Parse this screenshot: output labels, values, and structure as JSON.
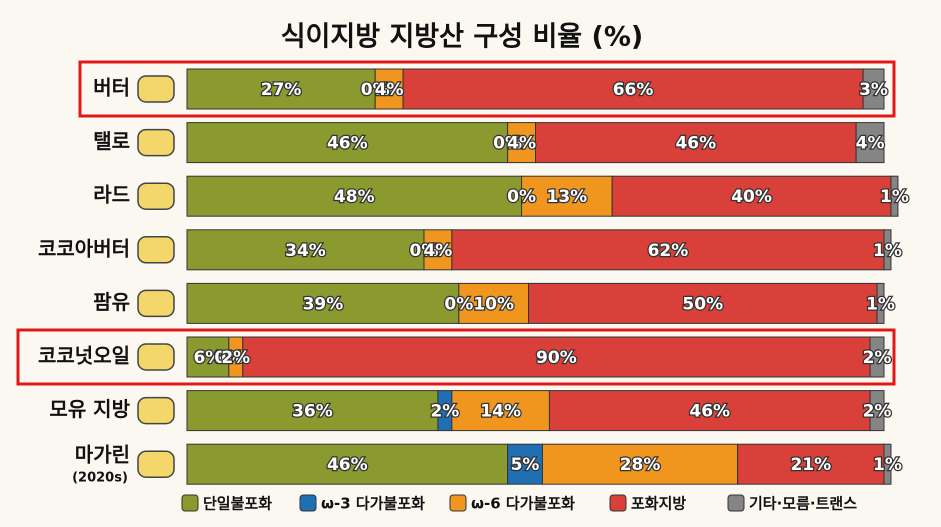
{
  "chart_data": {
    "type": "stacked-bar-horizontal",
    "title": "식이지방 지방산 구성 비율 (%)",
    "categories": [
      "버터",
      "탤로",
      "라드",
      "코코아버터",
      "팜유",
      "코코넛오일",
      "모유 지방",
      "마가린"
    ],
    "category_sublabels": [
      null,
      null,
      null,
      null,
      null,
      null,
      null,
      "(2020s)"
    ],
    "highlighted_categories": [
      "버터",
      "코코넛오일"
    ],
    "xlim": [
      0,
      100
    ],
    "series": [
      {
        "name": "단일불포화",
        "color": "#8a9a2e",
        "values": [
          27,
          46,
          48,
          34,
          39,
          6,
          36,
          46
        ],
        "value_labels": [
          "27%",
          "46%",
          "48%",
          "34%",
          "39%",
          "6%",
          "36%",
          "46%"
        ]
      },
      {
        "name": "ω-3 다가불포화",
        "color": "#1f6fb5",
        "values": [
          0,
          0,
          0,
          0,
          0,
          0,
          2,
          5
        ],
        "value_labels": [
          "0%",
          "0%",
          "0%",
          "0%",
          "0%",
          "0%",
          "2%",
          "5%"
        ]
      },
      {
        "name": "ω-6 다가불포화",
        "color": "#f0961e",
        "values": [
          4,
          4,
          13,
          4,
          10,
          2,
          14,
          28
        ],
        "value_labels": [
          "4%",
          "4%",
          "13%",
          "4%",
          "10%",
          "2%",
          "14%",
          "28%"
        ]
      },
      {
        "name": "포화지방",
        "color": "#d9403a",
        "values": [
          66,
          46,
          40,
          62,
          50,
          90,
          46,
          21
        ],
        "value_labels": [
          "66%",
          "46%",
          "40%",
          "62%",
          "50%",
          "90%",
          "46%",
          "21%"
        ]
      },
      {
        "name": "기타·모름·트랜스",
        "color": "#858585",
        "values": [
          3,
          4,
          1,
          1,
          1,
          2,
          2,
          1
        ],
        "value_labels": [
          "3%",
          "4%",
          "1%",
          "1%",
          "1%",
          "2%",
          "2%",
          "1%"
        ]
      }
    ]
  }
}
